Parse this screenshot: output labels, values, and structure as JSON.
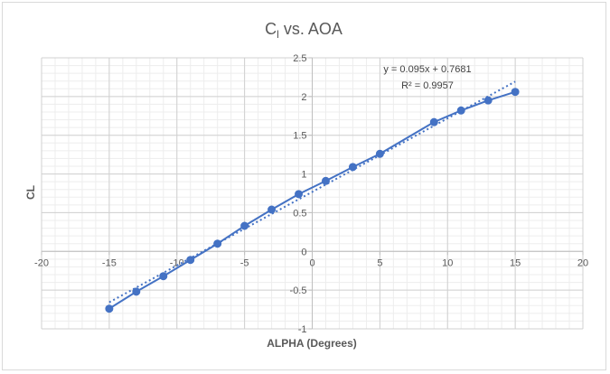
{
  "chart_data": {
    "type": "scatter",
    "title": {
      "main": "C",
      "sub": "l",
      "rest": " vs. AOA"
    },
    "xlabel": "ALPHA (Degrees)",
    "ylabel": "CL",
    "xlim": [
      -20,
      20
    ],
    "ylim": [
      -1,
      2.5
    ],
    "x_ticks": [
      -20,
      -15,
      -10,
      -5,
      0,
      5,
      10,
      15,
      20
    ],
    "y_ticks": [
      -1,
      -0.5,
      0,
      0.5,
      1,
      1.5,
      2,
      2.5
    ],
    "grid": true,
    "series": [
      {
        "x": [
          -15,
          -13,
          -11,
          -9,
          -7,
          -5,
          -3,
          -1,
          1,
          3,
          5,
          9,
          11,
          13,
          15
        ],
        "y": [
          -0.74,
          -0.52,
          -0.32,
          -0.11,
          0.1,
          0.33,
          0.54,
          0.74,
          0.91,
          1.09,
          1.26,
          1.67,
          1.82,
          1.95,
          2.06
        ],
        "color": "#4472c4"
      }
    ],
    "trendline": {
      "slope": 0.095,
      "intercept": 0.7681,
      "x_range": [
        -15,
        15
      ],
      "equation": "y = 0.095x + 0.7681",
      "r_squared": "R² = 0.9957",
      "style": "dotted",
      "color": "#4472c4"
    }
  }
}
